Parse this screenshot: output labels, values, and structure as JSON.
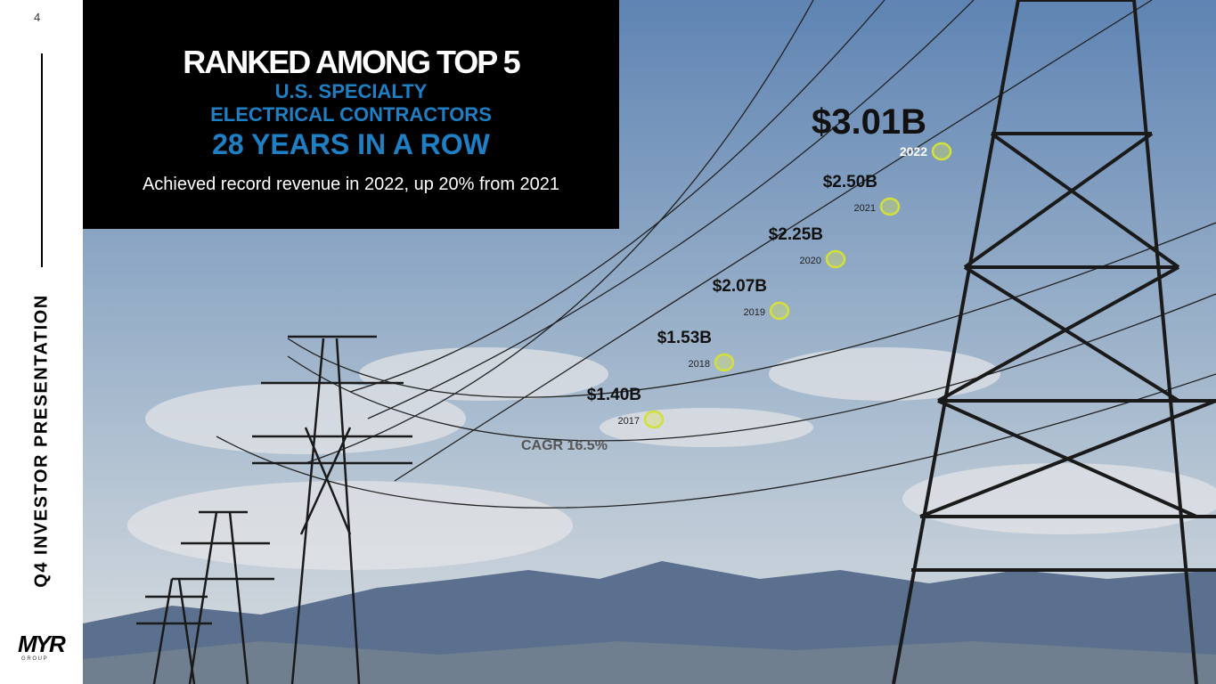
{
  "page_number": "4",
  "sidebar": {
    "title": "Q4 INVESTOR PRESENTATION",
    "logo": "MYR",
    "logo_sub": "G R O U P"
  },
  "headline": {
    "line1": "RANKED AMONG TOP 5",
    "line2": "U.S. SPECIALTY",
    "line3": "ELECTRICAL CONTRACTORS",
    "line4": "28 YEARS IN A ROW",
    "subtitle": "Achieved record revenue in 2022, up 20% from 2021"
  },
  "revenue_points": [
    {
      "value": "$1.40B",
      "year": "2017"
    },
    {
      "value": "$1.53B",
      "year": "2018"
    },
    {
      "value": "$2.07B",
      "year": "2019"
    },
    {
      "value": "$2.25B",
      "year": "2020"
    },
    {
      "value": "$2.50B",
      "year": "2021"
    },
    {
      "value": "$3.01B",
      "year": "2022"
    }
  ],
  "cagr": "CAGR 16.5%"
}
